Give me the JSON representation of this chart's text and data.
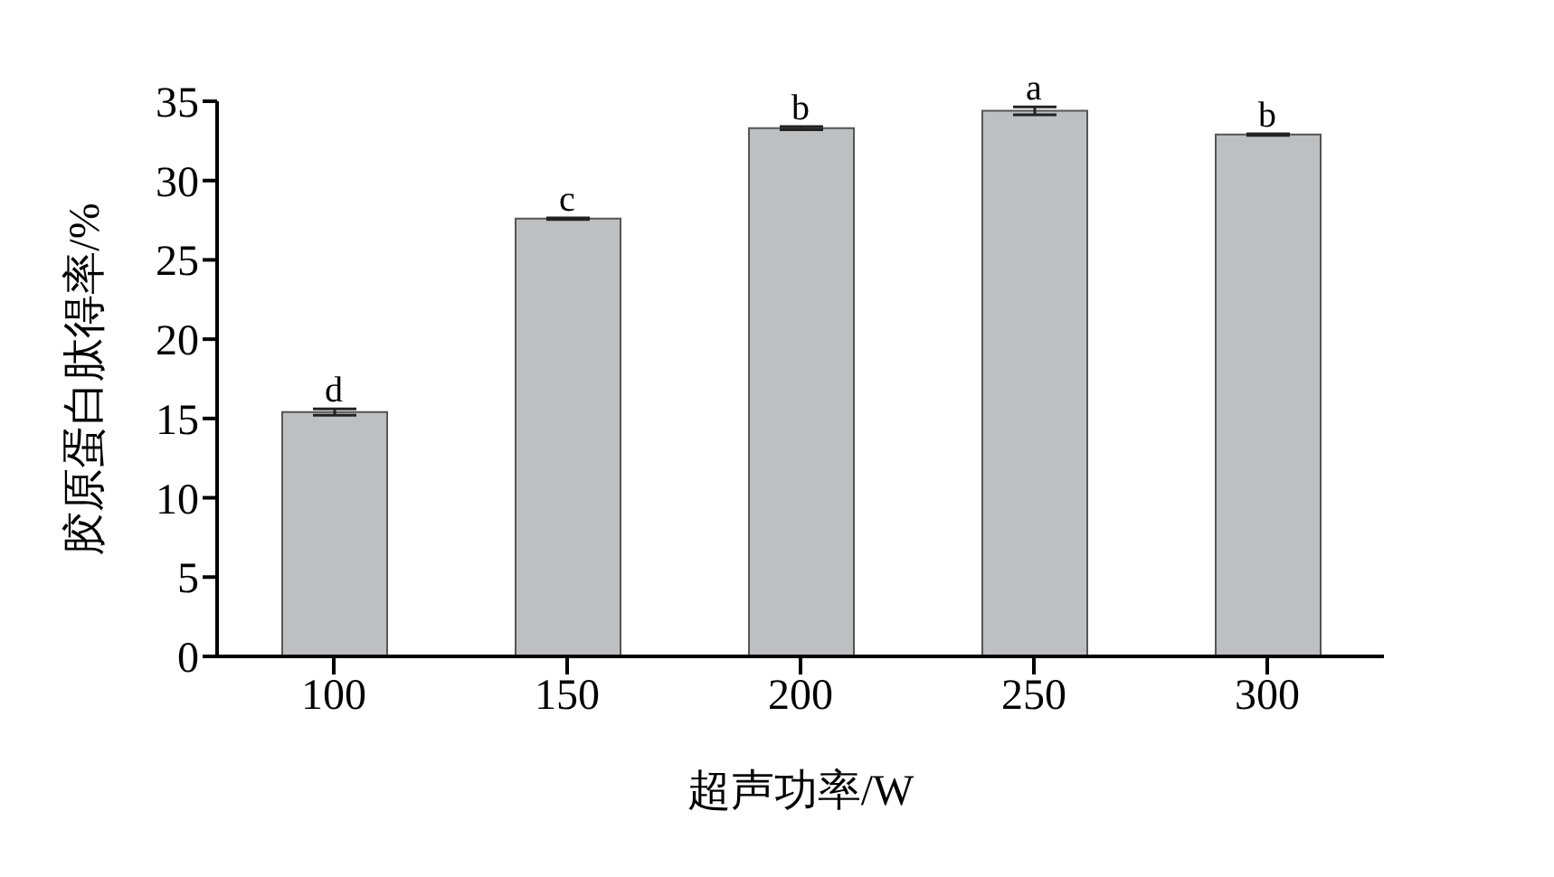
{
  "chart_data": {
    "type": "bar",
    "xlabel": "超声功率/W",
    "ylabel": "胶原蛋白肽得率/%",
    "categories": [
      "100",
      "150",
      "200",
      "250",
      "300"
    ],
    "values": [
      15.4,
      27.6,
      33.3,
      34.4,
      32.9
    ],
    "errors": [
      0.2,
      0.05,
      0.1,
      0.25,
      0.05
    ],
    "color": "#bebfc1",
    "ylim": [
      0,
      35
    ],
    "yticks": [
      0,
      5,
      10,
      15,
      20,
      25,
      30,
      35
    ],
    "grid": false,
    "annotations": [
      {
        "text": "d",
        "x": "100",
        "y": 15.6
      },
      {
        "text": "c",
        "x": "150",
        "y": 27.65
      },
      {
        "text": "b",
        "x": "200",
        "y": 33.4
      },
      {
        "text": "a",
        "x": "250",
        "y": 34.65
      },
      {
        "text": "b",
        "x": "300",
        "y": 32.95
      }
    ]
  }
}
